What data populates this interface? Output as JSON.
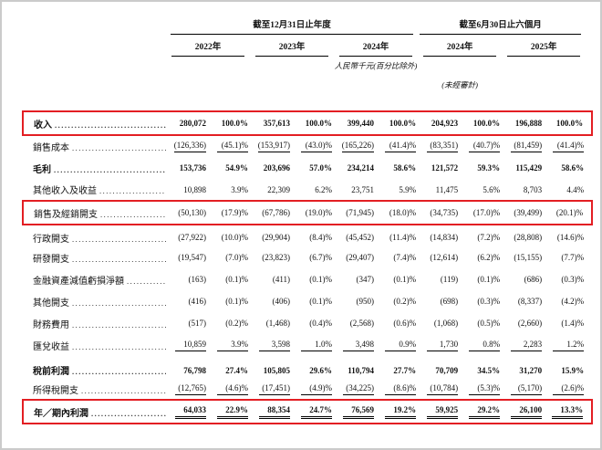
{
  "colors": {
    "box_red": "#e31e23",
    "page_border": "#cbcbcb",
    "text": "#111111"
  },
  "header": {
    "period_annual": "截至12月31日止年度",
    "period_interim": "截至6月30日止六個月",
    "years": [
      "2022年",
      "2023年",
      "2024年",
      "2024年",
      "2025年"
    ],
    "unit_note": "人民幣千元(百分比除外)",
    "audit_note": "(未經審計)"
  },
  "table": {
    "rows": [
      {
        "label": "收入",
        "bold": true,
        "boxed": true,
        "underline": "none",
        "values": [
          "280,072",
          "100.0%",
          "357,613",
          "100.0%",
          "399,440",
          "100.0%",
          "204,923",
          "100.0%",
          "196,888",
          "100.0%"
        ]
      },
      {
        "label": "銷售成本",
        "bold": false,
        "boxed": false,
        "underline": "single",
        "values": [
          "(126,336)",
          "(45.1)%",
          "(153,917)",
          "(43.0)%",
          "(165,226)",
          "(41.4)%",
          "(83,351)",
          "(40.7)%",
          "(81,459)",
          "(41.4)%"
        ]
      },
      {
        "label": "毛利",
        "bold": true,
        "boxed": false,
        "underline": "none",
        "values": [
          "153,736",
          "54.9%",
          "203,696",
          "57.0%",
          "234,214",
          "58.6%",
          "121,572",
          "59.3%",
          "115,429",
          "58.6%"
        ]
      },
      {
        "label": "其他收入及收益",
        "bold": false,
        "boxed": false,
        "underline": "none",
        "values": [
          "10,898",
          "3.9%",
          "22,309",
          "6.2%",
          "23,751",
          "5.9%",
          "11,475",
          "5.6%",
          "8,703",
          "4.4%"
        ]
      },
      {
        "label": "銷售及經銷開支",
        "bold": false,
        "boxed": true,
        "underline": "none",
        "values": [
          "(50,130)",
          "(17.9)%",
          "(67,786)",
          "(19.0)%",
          "(71,945)",
          "(18.0)%",
          "(34,735)",
          "(17.0)%",
          "(39,499)",
          "(20.1)%"
        ]
      },
      {
        "label": "行政開支",
        "bold": false,
        "boxed": false,
        "underline": "none",
        "values": [
          "(27,922)",
          "(10.0)%",
          "(29,904)",
          "(8.4)%",
          "(45,452)",
          "(11.4)%",
          "(14,834)",
          "(7.2)%",
          "(28,808)",
          "(14.6)%"
        ]
      },
      {
        "label": "研發開支",
        "bold": false,
        "boxed": false,
        "underline": "none",
        "values": [
          "(19,547)",
          "(7.0)%",
          "(23,823)",
          "(6.7)%",
          "(29,407)",
          "(7.4)%",
          "(12,614)",
          "(6.2)%",
          "(15,155)",
          "(7.7)%"
        ]
      },
      {
        "label": "金融資產減值虧損淨額",
        "bold": false,
        "boxed": false,
        "underline": "none",
        "values": [
          "(163)",
          "(0.1)%",
          "(411)",
          "(0.1)%",
          "(347)",
          "(0.1)%",
          "(119)",
          "(0.1)%",
          "(686)",
          "(0.3)%"
        ]
      },
      {
        "label": "其他開支",
        "bold": false,
        "boxed": false,
        "underline": "none",
        "values": [
          "(416)",
          "(0.1)%",
          "(406)",
          "(0.1)%",
          "(950)",
          "(0.2)%",
          "(698)",
          "(0.3)%",
          "(8,337)",
          "(4.2)%"
        ]
      },
      {
        "label": "財務費用",
        "bold": false,
        "boxed": false,
        "underline": "none",
        "values": [
          "(517)",
          "(0.2)%",
          "(1,468)",
          "(0.4)%",
          "(2,568)",
          "(0.6)%",
          "(1,068)",
          "(0.5)%",
          "(2,660)",
          "(1.4)%"
        ]
      },
      {
        "label": "匯兌收益",
        "bold": false,
        "boxed": false,
        "underline": "single",
        "values": [
          "10,859",
          "3.9%",
          "3,598",
          "1.0%",
          "3,498",
          "0.9%",
          "1,730",
          "0.8%",
          "2,283",
          "1.2%"
        ]
      },
      {
        "label": "稅前利潤",
        "bold": true,
        "boxed": false,
        "underline": "none",
        "values": [
          "76,798",
          "27.4%",
          "105,805",
          "29.6%",
          "110,794",
          "27.7%",
          "70,709",
          "34.5%",
          "31,270",
          "15.9%"
        ]
      },
      {
        "label": "所得稅開支",
        "bold": false,
        "boxed": false,
        "underline": "single",
        "values": [
          "(12,765)",
          "(4.6)%",
          "(17,451)",
          "(4.9)%",
          "(34,225)",
          "(8.6)%",
          "(10,784)",
          "(5.3)%",
          "(5,170)",
          "(2.6)%"
        ]
      },
      {
        "label": "年／期內利潤",
        "bold": true,
        "boxed": true,
        "underline": "double",
        "values": [
          "64,033",
          "22.9%",
          "88,354",
          "24.7%",
          "76,569",
          "19.2%",
          "59,925",
          "29.2%",
          "26,100",
          "13.3%"
        ]
      }
    ]
  }
}
